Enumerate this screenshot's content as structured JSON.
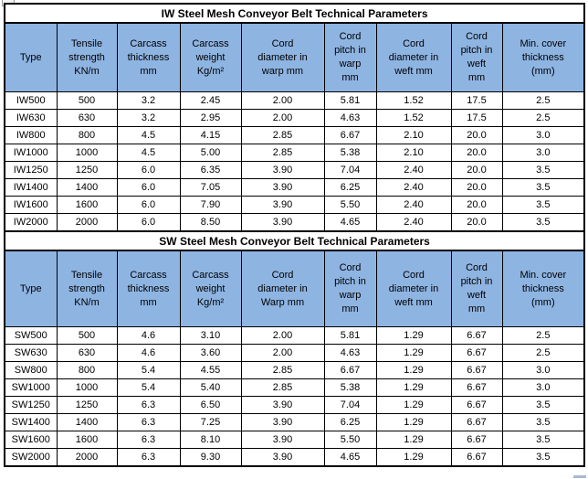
{
  "page": {
    "top_left_icon": "broken-image-placeholder"
  },
  "colors": {
    "header_bg": "#8EB4E2",
    "grid_border": "#000000",
    "title_bg": "#FFFFFF"
  },
  "tables": [
    {
      "title": "IW Steel Mesh Conveyor Belt Technical Parameters",
      "headers": [
        "Type",
        "Tensile\nstrength\nKN/m",
        "Carcass\nthickness\nmm",
        "Carcass\nweight\nKg/m²",
        "Cord\ndiameter in\nwarp mm",
        "Cord\npitch in\nwarp\nmm",
        "Cord\ndiameter in\nweft mm",
        "Cord\npitch in\nweft\nmm",
        "Min. cover\nthickness\n(mm)"
      ],
      "rows": [
        [
          "IW500",
          "500",
          "3.2",
          "2.45",
          "2.00",
          "5.81",
          "1.52",
          "17.5",
          "2.5"
        ],
        [
          "IW630",
          "630",
          "3.2",
          "2.95",
          "2.00",
          "4.63",
          "1.52",
          "17.5",
          "2.5"
        ],
        [
          "IW800",
          "800",
          "4.5",
          "4.15",
          "2.85",
          "6.67",
          "2.10",
          "20.0",
          "3.0"
        ],
        [
          "IW1000",
          "1000",
          "4.5",
          "5.00",
          "2.85",
          "5.38",
          "2.10",
          "20.0",
          "3.0"
        ],
        [
          "IW1250",
          "1250",
          "6.0",
          "6.35",
          "3.90",
          "7.04",
          "2.40",
          "20.0",
          "3.5"
        ],
        [
          "IW1400",
          "1400",
          "6.0",
          "7.05",
          "3.90",
          "6.25",
          "2.40",
          "20.0",
          "3.5"
        ],
        [
          "IW1600",
          "1600",
          "6.0",
          "7.90",
          "3.90",
          "5.50",
          "2.40",
          "20.0",
          "3.5"
        ],
        [
          "IW2000",
          "2000",
          "6.0",
          "8.50",
          "3.90",
          "4.65",
          "2.40",
          "20.0",
          "3.5"
        ]
      ]
    },
    {
      "title": "SW Steel Mesh Conveyor Belt Technical Parameters",
      "headers": [
        "Type",
        "Tensile\nstrength\nKN/m",
        "Carcass\nthickness\nmm",
        "Carcass\nweight\nKg/m²",
        "Cord\ndiameter in\nWarp mm",
        "Cord\npitch in\nwarp\nmm",
        "Cord\ndiameter in\nweft mm",
        "Cord\npitch in\nweft\nmm",
        "Min. cover\nthickness\n(mm)"
      ],
      "rows": [
        [
          "SW500",
          "500",
          "4.6",
          "3.10",
          "2.00",
          "5.81",
          "1.29",
          "6.67",
          "2.5"
        ],
        [
          "SW630",
          "630",
          "4.6",
          "3.60",
          "2.00",
          "4.63",
          "1.29",
          "6.67",
          "2.5"
        ],
        [
          "SW800",
          "800",
          "5.4",
          "4.55",
          "2.85",
          "6.67",
          "1.29",
          "6.67",
          "3.0"
        ],
        [
          "SW1000",
          "1000",
          "5.4",
          "5.40",
          "2.85",
          "5.38",
          "1.29",
          "6.67",
          "3.0"
        ],
        [
          "SW1250",
          "1250",
          "6.3",
          "6.50",
          "3.90",
          "7.04",
          "1.29",
          "6.67",
          "3.5"
        ],
        [
          "SW1400",
          "1400",
          "6.3",
          "7.25",
          "3.90",
          "6.25",
          "1.29",
          "6.67",
          "3.5"
        ],
        [
          "SW1600",
          "1600",
          "6.3",
          "8.10",
          "3.90",
          "5.50",
          "1.29",
          "6.67",
          "3.5"
        ],
        [
          "SW2000",
          "2000",
          "6.3",
          "9.30",
          "3.90",
          "4.65",
          "1.29",
          "6.67",
          "3.5"
        ]
      ]
    }
  ]
}
